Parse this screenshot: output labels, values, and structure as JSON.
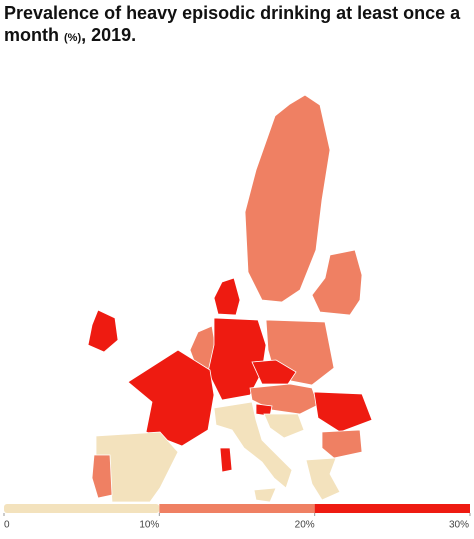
{
  "chart_data": {
    "type": "choropleth",
    "title": "Prevalence of heavy episodic drinking at least once a month",
    "unit": "(%)",
    "subtitle": ", 2019.",
    "legend": {
      "xlim": [
        0,
        30
      ],
      "ticks": [
        0,
        {
          "value": 10,
          "label": "10%"
        },
        {
          "value": 20,
          "label": "20%"
        },
        {
          "value": 30,
          "label": "30%"
        }
      ],
      "colors": [
        "#f3e2bd",
        "#ef8063",
        "#ee1b11"
      ]
    }
  }
}
